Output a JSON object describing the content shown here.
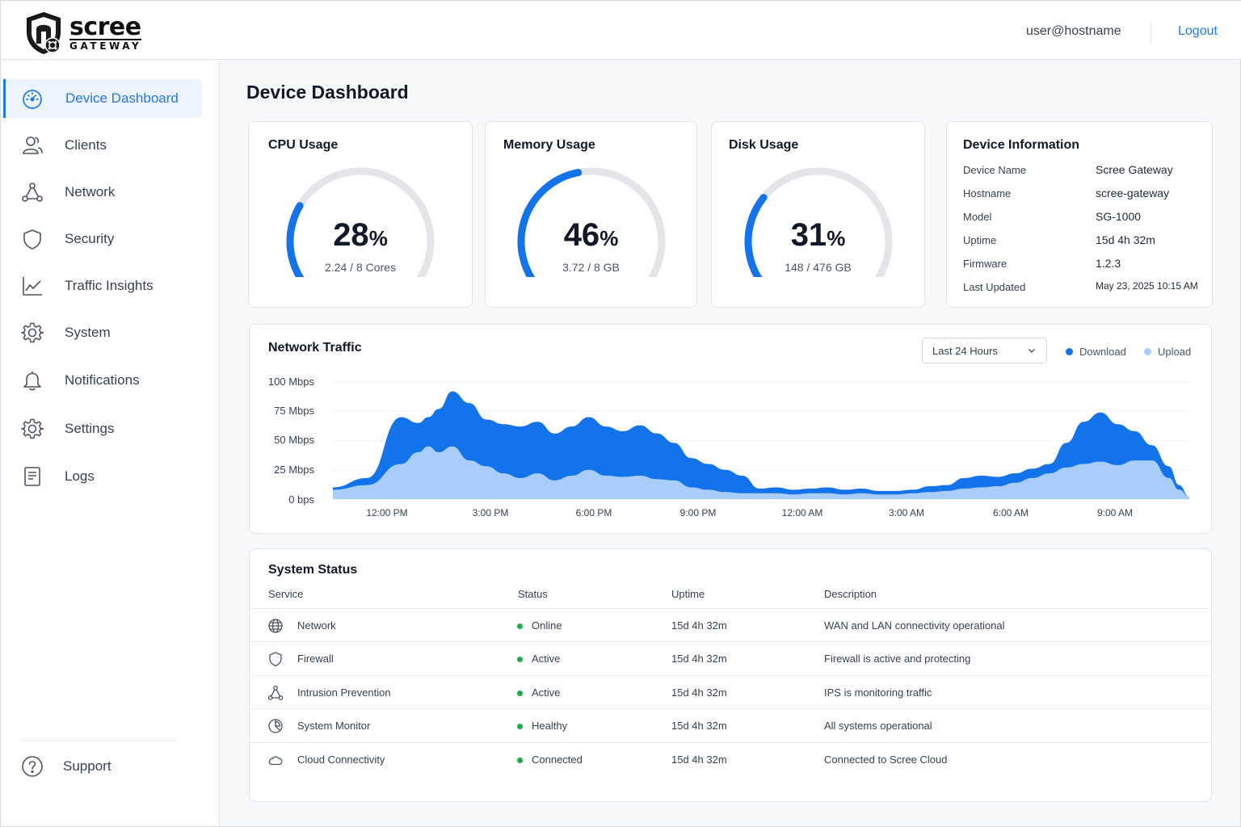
{
  "header": {
    "logo_word": "scree",
    "logo_sub": "GATEWAY",
    "user": "user@hostname",
    "logout_label": "Logout"
  },
  "sidebar": {
    "items": [
      {
        "label": "Device Dashboard",
        "icon": "dashboard-icon",
        "active": true
      },
      {
        "label": "Clients",
        "icon": "users-icon"
      },
      {
        "label": "Network",
        "icon": "network-icon"
      },
      {
        "label": "Security",
        "icon": "shield-icon"
      },
      {
        "label": "Traffic Insights",
        "icon": "chart-line-icon"
      },
      {
        "label": "System",
        "icon": "gear-icon"
      },
      {
        "label": "Notifications",
        "icon": "bell-icon"
      },
      {
        "label": "Settings",
        "icon": "gear-icon"
      },
      {
        "label": "Logs",
        "icon": "document-icon"
      }
    ],
    "support_label": "Support"
  },
  "page_title": "Device Dashboard",
  "cpu": {
    "title": "CPU Usage",
    "percent": 28,
    "percent_text": "28",
    "unit": "%",
    "sub": "2.24 / 8 Cores"
  },
  "memory": {
    "title": "Memory Usage",
    "percent": 46,
    "percent_text": "46",
    "unit": "%",
    "sub": "3.72 / 8 GB"
  },
  "disk": {
    "title": "Disk Usage",
    "percent": 31,
    "percent_text": "31",
    "unit": "%",
    "sub": "148 / 476 GB"
  },
  "device_info": {
    "title": "Device Information",
    "rows": [
      {
        "label": "Device Name",
        "value": "Scree Gateway"
      },
      {
        "label": "Hostname",
        "value": "scree-gateway"
      },
      {
        "label": "Model",
        "value": "SG-1000"
      },
      {
        "label": "Uptime",
        "value": "15d 4h 32m"
      },
      {
        "label": "Firmware",
        "value": "1.2.3"
      },
      {
        "label": "Last Updated",
        "value": "May 23, 2025 10:15 AM"
      }
    ]
  },
  "traffic": {
    "title": "Network Traffic",
    "range_label": "Last 24 Hours",
    "legend_download": "Download",
    "legend_upload": "Upload",
    "colors": {
      "download": "#1273ea",
      "upload": "#a9cdfa"
    }
  },
  "chart_data": {
    "type": "area",
    "title": "Network Traffic",
    "y_ticks": [
      "100 Mbps",
      "75 Mbps",
      "50 Mbps",
      "25 Mbps",
      "0 bps"
    ],
    "ylim": [
      0,
      100
    ],
    "x_ticks": [
      "12:00 PM",
      "3:00 PM",
      "6:00 PM",
      "9:00 PM",
      "12:00 AM",
      "3:00 AM",
      "6:00 AM",
      "9:00 AM"
    ],
    "x_hours": [
      -1.5,
      -0.5,
      0.5,
      1,
      1.3,
      1.6,
      2,
      2.5,
      3,
      3.5,
      4,
      4.5,
      5,
      5.5,
      6,
      6.5,
      7,
      7.5,
      8,
      8.5,
      9,
      9.5,
      10,
      10.5,
      11,
      11.5,
      12,
      12.5,
      13,
      13.5,
      14,
      14.5,
      15,
      15.5,
      16,
      16.5,
      17,
      17.5,
      18,
      18.5,
      19,
      19.5,
      20,
      20.5,
      21,
      21.5,
      22,
      22.5,
      23,
      23.3,
      23.6
    ],
    "series": [
      {
        "name": "Download",
        "values": [
          10,
          18,
          70,
          65,
          70,
          77,
          92,
          82,
          68,
          64,
          62,
          66,
          56,
          62,
          70,
          62,
          58,
          63,
          56,
          48,
          35,
          30,
          25,
          20,
          9,
          10,
          8,
          9,
          10,
          8,
          9,
          7,
          7,
          8,
          11,
          12,
          18,
          20,
          19,
          22,
          26,
          30,
          48,
          66,
          74,
          64,
          58,
          46,
          28,
          12,
          2
        ]
      },
      {
        "name": "Upload",
        "values": [
          8,
          12,
          30,
          40,
          45,
          40,
          45,
          33,
          28,
          22,
          18,
          22,
          16,
          20,
          25,
          20,
          19,
          20,
          17,
          16,
          10,
          8,
          6,
          5,
          5,
          5,
          4,
          5,
          5,
          4,
          5,
          4,
          4,
          5,
          6,
          7,
          9,
          10,
          11,
          14,
          18,
          22,
          27,
          30,
          32,
          29,
          33,
          33,
          18,
          8,
          2
        ]
      }
    ]
  },
  "system_status": {
    "title": "System Status",
    "headers": [
      "Service",
      "Status",
      "Uptime",
      "Description"
    ],
    "rows": [
      {
        "service": "Network",
        "icon": "globe-icon",
        "status": "Online",
        "uptime": "15d 4h 32m",
        "description": "WAN and LAN connectivity operational"
      },
      {
        "service": "Firewall",
        "icon": "shield-icon",
        "status": "Active",
        "uptime": "15d 4h 32m",
        "description": "Firewall is active and protecting"
      },
      {
        "service": "Intrusion Prevention",
        "icon": "network-icon",
        "status": "Active",
        "uptime": "15d 4h 32m",
        "description": "IPS is monitoring traffic"
      },
      {
        "service": "System Monitor",
        "icon": "pie-chart-icon",
        "status": "Healthy",
        "uptime": "15d 4h 32m",
        "description": "All systems operational"
      },
      {
        "service": "Cloud Connectivity",
        "icon": "cloud-icon",
        "status": "Connected",
        "uptime": "15d 4h 32m",
        "description": "Connected to Scree Cloud"
      }
    ]
  }
}
